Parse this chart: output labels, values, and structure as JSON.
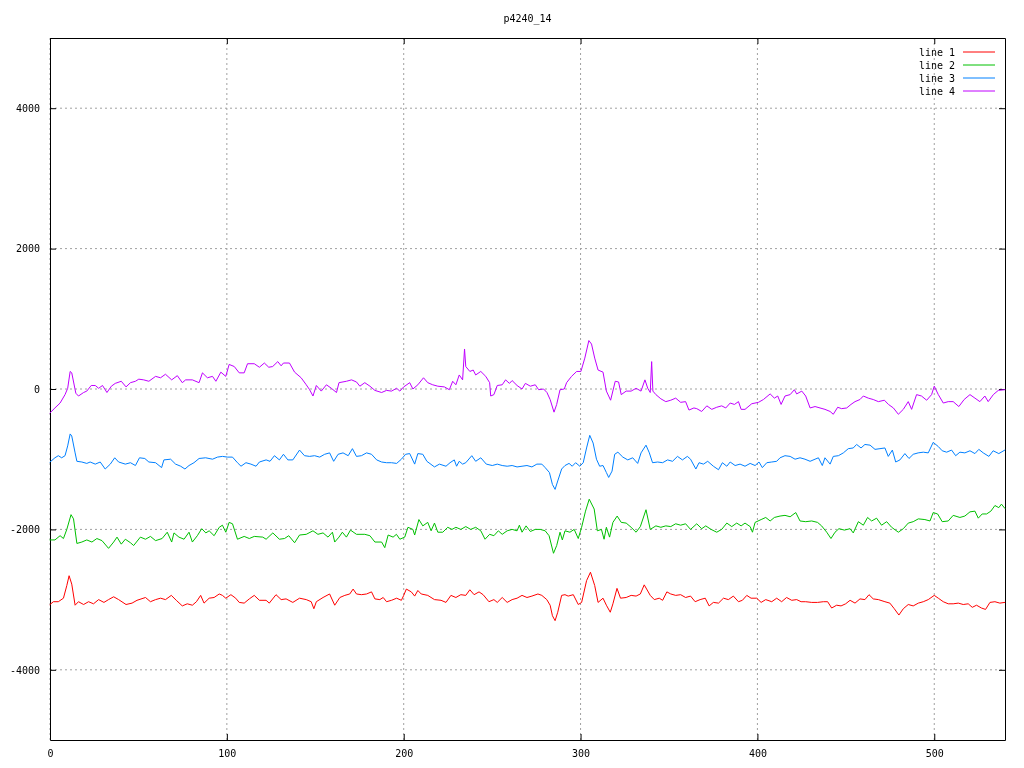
{
  "chart_data": {
    "type": "line",
    "title": "p4240_14",
    "xlim": [
      0,
      540
    ],
    "ylim": [
      -5000,
      5000
    ],
    "xticks": [
      0,
      100,
      200,
      300,
      400,
      500
    ],
    "yticks": [
      -4000,
      -2000,
      0,
      2000,
      4000
    ],
    "grid": true,
    "legend": "top right",
    "series": [
      {
        "name": "line 1",
        "color": "#ff0000",
        "x": [
          0,
          1.9,
          4.7,
          7.6,
          9.5,
          10.8,
          12.3,
          14.2,
          16.1,
          19,
          21.8,
          24.6,
          27.5,
          30.5,
          33.1,
          36,
          38.8,
          43,
          46.4,
          49.2,
          54,
          56.8,
          59.7,
          62.5,
          65.3,
          68.6,
          71.4,
          74.8,
          77.6,
          80.5,
          82.8,
          85.2,
          87.1,
          90,
          92.8,
          95.7,
          97.5,
          99.4,
          102.3,
          105,
          107,
          109.8,
          112.7,
          115.5,
          118.4,
          122.2,
          124,
          127.8,
          130.7,
          133.5,
          137.3,
          141.1,
          144.9,
          147.7,
          149.2,
          150.6,
          154.4,
          158.1,
          161,
          163.9,
          166.7,
          169.5,
          171.4,
          173.3,
          176.1,
          179,
          181.8,
          183.7,
          186.5,
          188.4,
          190.3,
          193.1,
          196,
          198.7,
          200,
          201.5,
          204.3,
          206.2,
          208,
          209.9,
          213.6,
          217.4,
          221.1,
          223.9,
          226.7,
          229.5,
          232.3,
          235.1,
          237.4,
          239.8,
          242.6,
          244.9,
          248.2,
          251,
          252.9,
          255.7,
          258.5,
          261.3,
          264.1,
          266.9,
          269.7,
          272.5,
          275.9,
          278.1,
          280.9,
          282.8,
          284.1,
          285.6,
          287.1,
          289.3,
          291.2,
          293,
          295.9,
          298.7,
          300.6,
          303.4,
          305.6,
          308,
          309.9,
          312.7,
          314.6,
          316.8,
          318.3,
          320.6,
          322.6,
          325.8,
          328.6,
          331.4,
          333.8,
          336,
          339.4,
          341.7,
          344.5,
          346.4,
          348.8,
          351,
          353.8,
          356.6,
          359.4,
          362.2,
          364.8,
          367.6,
          370.5,
          372.7,
          375.1,
          378,
          380.8,
          383.6,
          386.4,
          389.3,
          391.5,
          394,
          396.4,
          399.6,
          402.1,
          404.7,
          408.1,
          410.9,
          413.7,
          416.5,
          419.4,
          422.2,
          424.7,
          427.3,
          430.7,
          434,
          437.3,
          439.7,
          442,
          444.8,
          447.3,
          449.9,
          452.4,
          455.2,
          458,
          460.8,
          463.1,
          465.5,
          468.4,
          472.1,
          474.9,
          477.4,
          480,
          482.5,
          485.3,
          488.1,
          491,
          493.8,
          496.6,
          500,
          502.3,
          505.1,
          507.9,
          510.7,
          513.6,
          516.4,
          519.2,
          521.5,
          523.9,
          526.7,
          529,
          531.5,
          534.3,
          537.1,
          539.9
        ],
        "values": [
          -3070,
          -3030,
          -3030,
          -2980,
          -2800,
          -2660,
          -2780,
          -3080,
          -3030,
          -3070,
          -3030,
          -3060,
          -3000,
          -3040,
          -3000,
          -2960,
          -3000,
          -3070,
          -3050,
          -3010,
          -2970,
          -3030,
          -3000,
          -2980,
          -3000,
          -2940,
          -3010,
          -3090,
          -3060,
          -3080,
          -3030,
          -2940,
          -3050,
          -2980,
          -2970,
          -2920,
          -2940,
          -2980,
          -2930,
          -2980,
          -3040,
          -3050,
          -2990,
          -2940,
          -3010,
          -3010,
          -3050,
          -2930,
          -3000,
          -2990,
          -3040,
          -2980,
          -3000,
          -3030,
          -3130,
          -3030,
          -2970,
          -2920,
          -3080,
          -2970,
          -2940,
          -2920,
          -2850,
          -2920,
          -2930,
          -2920,
          -2890,
          -2990,
          -3000,
          -2970,
          -3030,
          -3010,
          -2980,
          -3010,
          -2940,
          -2850,
          -2890,
          -2950,
          -2870,
          -2920,
          -2940,
          -3000,
          -3010,
          -3040,
          -2940,
          -2970,
          -2930,
          -2940,
          -2860,
          -2930,
          -2890,
          -2930,
          -3030,
          -3000,
          -3040,
          -2970,
          -3040,
          -3000,
          -2980,
          -2940,
          -2970,
          -2950,
          -2920,
          -2940,
          -3000,
          -3080,
          -3230,
          -3300,
          -3180,
          -2940,
          -2930,
          -2950,
          -2930,
          -3070,
          -3040,
          -2730,
          -2610,
          -2800,
          -3040,
          -2980,
          -3080,
          -3180,
          -3060,
          -2840,
          -2980,
          -2970,
          -2940,
          -2950,
          -2920,
          -2790,
          -2940,
          -3000,
          -2980,
          -3010,
          -2890,
          -2920,
          -2940,
          -2930,
          -2970,
          -2950,
          -3030,
          -3000,
          -2980,
          -3090,
          -3040,
          -3050,
          -2980,
          -3000,
          -2950,
          -3030,
          -3010,
          -2940,
          -2980,
          -2980,
          -3040,
          -3000,
          -3030,
          -2980,
          -3030,
          -2970,
          -3010,
          -3000,
          -3030,
          -3030,
          -3040,
          -3040,
          -3030,
          -3030,
          -3120,
          -3080,
          -3090,
          -3060,
          -3010,
          -3050,
          -2990,
          -3000,
          -2930,
          -2990,
          -3000,
          -3030,
          -3050,
          -3130,
          -3220,
          -3130,
          -3070,
          -3090,
          -3050,
          -3030,
          -3000,
          -2940,
          -2980,
          -3030,
          -3060,
          -3060,
          -3050,
          -3070,
          -3060,
          -3110,
          -3080,
          -3120,
          -3140,
          -3040,
          -3030,
          -3050,
          -3040
        ]
      },
      {
        "name": "line 2",
        "color": "#00c000",
        "x": [
          0,
          2.8,
          5.7,
          7.6,
          9.5,
          11.9,
          13.3,
          15.2,
          18,
          20.8,
          23.7,
          26.5,
          29.4,
          33.1,
          36,
          37.9,
          40.3,
          42.6,
          45.5,
          47.3,
          51.1,
          54,
          56.8,
          59.7,
          63.4,
          66.3,
          68.8,
          70.1,
          72.9,
          75.8,
          78.6,
          80.5,
          83.3,
          85.8,
          88.1,
          90,
          92.8,
          95.7,
          97.5,
          99.4,
          101.3,
          103.2,
          106,
          109.8,
          112.7,
          115.5,
          120.3,
          122.2,
          126,
          129.7,
          132.6,
          135,
          138.3,
          141.1,
          144.9,
          148.7,
          151.5,
          154.4,
          157.2,
          159.7,
          161,
          163.4,
          165.3,
          167.6,
          169.9,
          173.3,
          178,
          180.9,
          183.7,
          187.5,
          189.3,
          191.2,
          194,
          195.9,
          197.8,
          200.6,
          202.4,
          205.2,
          206.2,
          208.6,
          210.8,
          213.6,
          215.5,
          217.4,
          219.3,
          222.1,
          224.9,
          227.3,
          229.5,
          232.3,
          235.1,
          237.9,
          240.7,
          243.6,
          246,
          248.6,
          251,
          253.5,
          255.7,
          258.5,
          261.3,
          264.1,
          265.4,
          266.9,
          269.2,
          271.6,
          274.4,
          277.2,
          280,
          282.2,
          284.7,
          286.5,
          288.4,
          289.7,
          291.2,
          294,
          296.4,
          298.7,
          300.6,
          302.8,
          304.9,
          307.7,
          309.5,
          311.8,
          313.3,
          314.6,
          316.4,
          318.3,
          320.7,
          323,
          325.8,
          328.6,
          331.4,
          333.8,
          337,
          339.4,
          342.6,
          345.4,
          348.2,
          351,
          353.8,
          356.6,
          359.4,
          362.2,
          365.7,
          368.5,
          370.8,
          373.8,
          377,
          379.8,
          382.7,
          385.5,
          388.3,
          390.8,
          393,
          395.9,
          397.2,
          398.7,
          402.1,
          404.7,
          407.2,
          409.6,
          412.8,
          415.6,
          418.5,
          421.7,
          424.1,
          427.3,
          430.7,
          434,
          436.3,
          439.2,
          441.6,
          443.9,
          446.1,
          449.2,
          452.4,
          454.2,
          457.1,
          459.9,
          462.3,
          464.6,
          467.4,
          470.2,
          473.1,
          475.9,
          479.7,
          482.5,
          485.3,
          488.1,
          491,
          494.7,
          497.6,
          499.4,
          501.9,
          504.5,
          507.9,
          510.7,
          514.5,
          517.3,
          520.2,
          523,
          524.9,
          527.1,
          529.6,
          532,
          534.3,
          536.5,
          538,
          539.9
        ],
        "values": [
          -2150,
          -2150,
          -2090,
          -2130,
          -2000,
          -1790,
          -1850,
          -2200,
          -2180,
          -2150,
          -2180,
          -2130,
          -2160,
          -2270,
          -2180,
          -2110,
          -2210,
          -2140,
          -2190,
          -2230,
          -2110,
          -2140,
          -2100,
          -2160,
          -2130,
          -2040,
          -2180,
          -2050,
          -2110,
          -2140,
          -2040,
          -2180,
          -2090,
          -1990,
          -2050,
          -2020,
          -2090,
          -1970,
          -1940,
          -2040,
          -1900,
          -1920,
          -2140,
          -2100,
          -2130,
          -2100,
          -2110,
          -2140,
          -2050,
          -2140,
          -2130,
          -2090,
          -2190,
          -2080,
          -2070,
          -2020,
          -2070,
          -2050,
          -2110,
          -2040,
          -2180,
          -2110,
          -2040,
          -2110,
          -2010,
          -2070,
          -2070,
          -2090,
          -2180,
          -2180,
          -2260,
          -2080,
          -2110,
          -2070,
          -2140,
          -2110,
          -1970,
          -2000,
          -2080,
          -1860,
          -1950,
          -1900,
          -2020,
          -1910,
          -2040,
          -2040,
          -1970,
          -2000,
          -1970,
          -2000,
          -1960,
          -2000,
          -1970,
          -2020,
          -2140,
          -2070,
          -2090,
          -2020,
          -2070,
          -2020,
          -2000,
          -2020,
          -1940,
          -2040,
          -1950,
          -2030,
          -2000,
          -2000,
          -2020,
          -2090,
          -2340,
          -2230,
          -2040,
          -2150,
          -2020,
          -2040,
          -2000,
          -2130,
          -1970,
          -1740,
          -1570,
          -1710,
          -2020,
          -2000,
          -2140,
          -1970,
          -2110,
          -1900,
          -1810,
          -1900,
          -1910,
          -1970,
          -2040,
          -1960,
          -1720,
          -2000,
          -1950,
          -1970,
          -1950,
          -1960,
          -1920,
          -1940,
          -1920,
          -2000,
          -1920,
          -1990,
          -1950,
          -2000,
          -2040,
          -2000,
          -1910,
          -1960,
          -1910,
          -1950,
          -1910,
          -1960,
          -2040,
          -1900,
          -1860,
          -1830,
          -1880,
          -1830,
          -1810,
          -1800,
          -1820,
          -1760,
          -1880,
          -1890,
          -1880,
          -1900,
          -1950,
          -2040,
          -2130,
          -2040,
          -1990,
          -2010,
          -1990,
          -2050,
          -1890,
          -1940,
          -1830,
          -1880,
          -1840,
          -1940,
          -1890,
          -1970,
          -2040,
          -1990,
          -1910,
          -1890,
          -1850,
          -1860,
          -1880,
          -1760,
          -1780,
          -1890,
          -1880,
          -1800,
          -1830,
          -1810,
          -1750,
          -1740,
          -1840,
          -1780,
          -1780,
          -1740,
          -1660,
          -1690,
          -1640,
          -1700
        ]
      },
      {
        "name": "line 3",
        "color": "#0080ff",
        "x": [
          0,
          2.8,
          4.7,
          6.6,
          8.5,
          10,
          11.4,
          12.3,
          14.2,
          15.2,
          18,
          20.8,
          22.7,
          25.6,
          28.4,
          31.2,
          34.1,
          36.6,
          38.8,
          42.6,
          45.5,
          48.3,
          50.6,
          53.6,
          55.9,
          59.7,
          63.1,
          64.4,
          68.2,
          71,
          73.9,
          76.3,
          78.6,
          81.4,
          84.3,
          88,
          91.9,
          94.7,
          97.5,
          100.4,
          103.2,
          106,
          108,
          110.8,
          113.6,
          116.5,
          118.4,
          122.2,
          124.4,
          126.9,
          129.7,
          132,
          134.5,
          137.3,
          141.1,
          143.9,
          146.8,
          149.6,
          152.5,
          155.3,
          158.1,
          160.4,
          162.9,
          165.7,
          168.6,
          171,
          173.3,
          176.1,
          179,
          181.8,
          184.7,
          187.5,
          190.3,
          193.1,
          196,
          198.7,
          201.1,
          203.4,
          206.2,
          208,
          210.8,
          213.1,
          217.4,
          220.2,
          223.9,
          226.2,
          228.6,
          229.9,
          231.4,
          233.3,
          235.1,
          238.5,
          240.7,
          243.6,
          246.7,
          250.1,
          252.9,
          255.7,
          258.5,
          261.3,
          264.1,
          266.9,
          269.7,
          272.5,
          275.3,
          278.1,
          280,
          282.4,
          284.1,
          285.6,
          287.1,
          289.3,
          291.2,
          293.5,
          295.3,
          297.2,
          299.6,
          301.5,
          303.4,
          305.2,
          307.1,
          309,
          310.8,
          312.7,
          314.6,
          315.9,
          317.8,
          319.3,
          321.1,
          323.9,
          326.7,
          329.5,
          332.3,
          334.2,
          337,
          338.9,
          340.7,
          343.6,
          346.4,
          349.2,
          352,
          354.8,
          357.6,
          360.4,
          362.2,
          365.2,
          367,
          369.5,
          371.9,
          375.1,
          378,
          380.2,
          382.7,
          384.6,
          387.4,
          390.2,
          393,
          395.9,
          398.7,
          400.9,
          402.8,
          405.3,
          408.1,
          410.9,
          412.8,
          415.6,
          418.5,
          421.3,
          424.1,
          426.9,
          429.8,
          432.6,
          434.5,
          436.7,
          438.2,
          441.1,
          442.9,
          445.8,
          448.6,
          451.4,
          454.2,
          456.1,
          458.6,
          460.8,
          463.7,
          466.5,
          469.3,
          472.1,
          474,
          476.3,
          478.2,
          480.6,
          483.4,
          485.7,
          488.1,
          490.9,
          493.8,
          496.6,
          499.4,
          502.3,
          504.5,
          507,
          509.8,
          512.1,
          514.5,
          517.3,
          520.2,
          523,
          525.2,
          527.7,
          530.9,
          533.3,
          536.5,
          539.9
        ],
        "values": [
          -1040,
          -980,
          -950,
          -980,
          -950,
          -810,
          -640,
          -670,
          -910,
          -1030,
          -1040,
          -1060,
          -1040,
          -1070,
          -1040,
          -1140,
          -1070,
          -980,
          -1040,
          -1070,
          -1050,
          -1090,
          -980,
          -990,
          -1040,
          -1050,
          -1120,
          -1010,
          -1000,
          -1070,
          -1100,
          -1140,
          -1090,
          -1050,
          -990,
          -980,
          -1000,
          -970,
          -960,
          -970,
          -970,
          -1050,
          -1100,
          -1050,
          -1070,
          -1100,
          -1040,
          -1010,
          -1030,
          -950,
          -1010,
          -930,
          -1010,
          -1010,
          -870,
          -950,
          -960,
          -950,
          -970,
          -930,
          -910,
          -1030,
          -930,
          -910,
          -950,
          -850,
          -960,
          -950,
          -910,
          -930,
          -1010,
          -1040,
          -1050,
          -1050,
          -1060,
          -1000,
          -930,
          -920,
          -1070,
          -920,
          -930,
          -1030,
          -1110,
          -1070,
          -1100,
          -1050,
          -1010,
          -1100,
          -1030,
          -1070,
          -1050,
          -950,
          -1030,
          -980,
          -1070,
          -1090,
          -1070,
          -1090,
          -1100,
          -1090,
          -1110,
          -1100,
          -1090,
          -1110,
          -1070,
          -1070,
          -1120,
          -1190,
          -1360,
          -1430,
          -1310,
          -1140,
          -1090,
          -1060,
          -1100,
          -1050,
          -1100,
          -1050,
          -840,
          -660,
          -770,
          -1000,
          -1100,
          -1090,
          -1190,
          -1260,
          -1170,
          -930,
          -900,
          -970,
          -1010,
          -980,
          -1060,
          -910,
          -800,
          -910,
          -1050,
          -1040,
          -1050,
          -1010,
          -1030,
          -960,
          -1010,
          -960,
          -1000,
          -1140,
          -1050,
          -1070,
          -1030,
          -1100,
          -1150,
          -1050,
          -1100,
          -1040,
          -1090,
          -1070,
          -1100,
          -1060,
          -1090,
          -1040,
          -1120,
          -1050,
          -1040,
          -1030,
          -980,
          -950,
          -960,
          -1000,
          -980,
          -1000,
          -1030,
          -1000,
          -980,
          -1090,
          -980,
          -1070,
          -960,
          -950,
          -910,
          -850,
          -840,
          -790,
          -840,
          -790,
          -800,
          -860,
          -850,
          -840,
          -960,
          -870,
          -1040,
          -1010,
          -920,
          -990,
          -930,
          -910,
          -900,
          -910,
          -760,
          -820,
          -880,
          -900,
          -870,
          -950,
          -900,
          -910,
          -880,
          -920,
          -860,
          -910,
          -960,
          -880,
          -920,
          -870
        ]
      },
      {
        "name": "line 4",
        "color": "#c000ff",
        "x": [
          0,
          2.8,
          5.7,
          8.5,
          10,
          11.4,
          12.3,
          14.6,
          16.1,
          19,
          20.8,
          23.3,
          25.6,
          27.5,
          29.7,
          32.2,
          34.7,
          36.9,
          40.3,
          43,
          45.5,
          48.3,
          50.2,
          53,
          55.9,
          59.7,
          62.5,
          65.3,
          68.8,
          72,
          74.8,
          76.7,
          80.5,
          84.3,
          86.2,
          89,
          91.9,
          93.8,
          96.6,
          99.4,
          101.3,
          104.2,
          107,
          109.8,
          111.7,
          115.5,
          118.4,
          121.2,
          123.7,
          125.9,
          128.8,
          130.7,
          132,
          135.4,
          138.3,
          142,
          144.9,
          146.8,
          148.7,
          150.6,
          153.4,
          156.3,
          159.1,
          162,
          163.4,
          167.6,
          170.5,
          173.3,
          175.2,
          178,
          180.9,
          183.7,
          187.5,
          190.3,
          193.1,
          196,
          197.8,
          200,
          203.4,
          205.2,
          208,
          211.2,
          213.6,
          216.4,
          219.3,
          223,
          225.8,
          227.7,
          229.5,
          231.4,
          233.3,
          234.4,
          235.1,
          237.4,
          239.3,
          240.7,
          243.6,
          246.4,
          248.6,
          249.2,
          251,
          252.9,
          255.7,
          257.6,
          259.8,
          261.3,
          264.1,
          266.9,
          268.8,
          271.6,
          274.4,
          276.3,
          279.1,
          281,
          282.8,
          285,
          286.5,
          288.4,
          290.8,
          292.1,
          294.9,
          297.8,
          300.2,
          302.4,
          304.7,
          306.2,
          308,
          309.9,
          312.7,
          314.6,
          317,
          319.6,
          321.5,
          323,
          325.8,
          328.6,
          331.4,
          334.2,
          336.4,
          338,
          339.4,
          340.2,
          340.9,
          342.6,
          345.4,
          348.2,
          351,
          353.8,
          356.6,
          359.4,
          361.3,
          364.1,
          365.7,
          368.5,
          371.4,
          374.2,
          377,
          379.8,
          382.1,
          384.6,
          387,
          389.3,
          390.8,
          393,
          396.8,
          400.6,
          403.4,
          407.2,
          409.6,
          411.5,
          413.4,
          415.6,
          418.5,
          420.9,
          422.2,
          425.1,
          427.3,
          429.8,
          432.6,
          435.4,
          438.2,
          441.1,
          442.9,
          445.4,
          447.6,
          450.5,
          452.9,
          455.2,
          458,
          459.9,
          462.7,
          465.5,
          468.4,
          471.8,
          474.1,
          476.9,
          479.7,
          482.5,
          485.3,
          487.2,
          490,
          492.8,
          495.7,
          498.5,
          500,
          502.3,
          505.1,
          507.9,
          510.7,
          513.9,
          516.9,
          520.2,
          523,
          525.8,
          528.6,
          530.5,
          533.4,
          536.2,
          539.9
        ],
        "values": [
          -340,
          -270,
          -200,
          -80,
          10,
          250,
          230,
          -60,
          -100,
          -50,
          -30,
          50,
          50,
          10,
          50,
          -50,
          40,
          80,
          110,
          30,
          90,
          110,
          140,
          130,
          110,
          180,
          160,
          210,
          130,
          190,
          90,
          130,
          130,
          90,
          230,
          160,
          180,
          110,
          240,
          180,
          350,
          320,
          230,
          230,
          360,
          360,
          310,
          370,
          310,
          320,
          390,
          330,
          370,
          370,
          240,
          160,
          60,
          -10,
          -100,
          50,
          -30,
          60,
          10,
          -50,
          90,
          110,
          130,
          100,
          40,
          90,
          40,
          -20,
          -50,
          -20,
          -30,
          10,
          -30,
          30,
          90,
          0,
          60,
          160,
          90,
          60,
          40,
          30,
          -10,
          110,
          60,
          200,
          130,
          570,
          320,
          250,
          270,
          200,
          250,
          180,
          90,
          -100,
          -80,
          50,
          60,
          130,
          80,
          120,
          50,
          0,
          80,
          40,
          60,
          -10,
          0,
          -50,
          -150,
          -330,
          -220,
          -10,
          0,
          90,
          180,
          250,
          250,
          440,
          690,
          640,
          440,
          270,
          240,
          -30,
          -160,
          110,
          100,
          -80,
          -30,
          -30,
          10,
          -30,
          130,
          10,
          -50,
          390,
          -30,
          -80,
          -140,
          -180,
          -160,
          -130,
          -190,
          -180,
          -300,
          -270,
          -280,
          -320,
          -240,
          -290,
          -260,
          -240,
          -270,
          -200,
          -220,
          -180,
          -290,
          -290,
          -210,
          -190,
          -150,
          -70,
          -130,
          -100,
          -220,
          -100,
          -80,
          -10,
          -70,
          -30,
          -100,
          -270,
          -250,
          -270,
          -290,
          -320,
          -360,
          -260,
          -280,
          -270,
          -220,
          -180,
          -150,
          -100,
          -130,
          -150,
          -180,
          -160,
          -220,
          -270,
          -360,
          -290,
          -180,
          -290,
          -80,
          -100,
          -160,
          -80,
          40,
          -80,
          -200,
          -180,
          -180,
          -250,
          -150,
          -80,
          -130,
          -180,
          -100,
          -180,
          -80,
          -20,
          -10
        ]
      }
    ]
  }
}
